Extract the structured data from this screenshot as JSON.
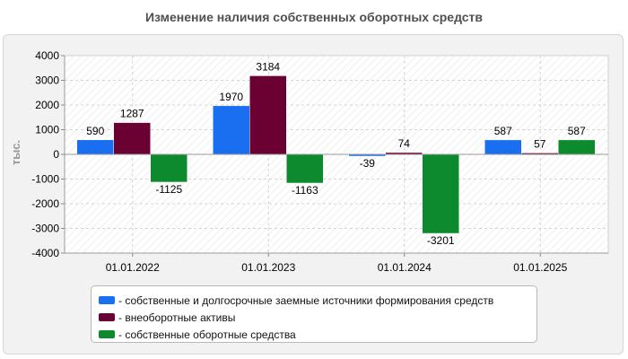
{
  "title": "Изменение наличия собственных оборотных средств",
  "chart_data": {
    "type": "bar",
    "title": "Изменение наличия собственных оборотных средств",
    "ylabel": "тыс.",
    "xlabel": "",
    "ylim": [
      -4000,
      4000
    ],
    "yticks": [
      4000,
      3000,
      2000,
      1000,
      0,
      -1000,
      -2000,
      -3000,
      -4000
    ],
    "categories": [
      "01.01.2022",
      "01.01.2023",
      "01.01.2024",
      "01.01.2025"
    ],
    "series": [
      {
        "name": "- собственные и долгосрочные заемные источники формирования средств",
        "color": "#1a6ff0",
        "values": [
          590,
          1970,
          -39,
          587
        ]
      },
      {
        "name": "- внеоборотные активы",
        "color": "#6b0033",
        "values": [
          1287,
          3184,
          74,
          57
        ]
      },
      {
        "name": "- собственные оборотные средства",
        "color": "#0d8a2e",
        "values": [
          -1125,
          -1163,
          -3201,
          587
        ]
      }
    ],
    "grid": true,
    "legend": "bottom"
  }
}
